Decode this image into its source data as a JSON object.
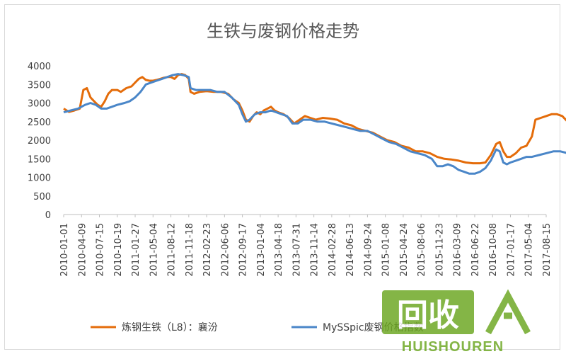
{
  "chart_data": {
    "type": "line",
    "title": "生铁与废钢价格走势",
    "xlabel": "",
    "ylabel": "",
    "ylim": [
      0,
      4000
    ],
    "yticks": [
      0,
      500,
      1000,
      1500,
      2000,
      2500,
      3000,
      3500,
      4000
    ],
    "grid": false,
    "legend_position": "bottom",
    "x_tick_labels": [
      "2010-01-01",
      "2010-04-09",
      "2010-07-15",
      "2010-10-19",
      "2011-01-27",
      "2011-05-04",
      "2011-08-12",
      "2011-11-18",
      "2012-02-23",
      "2012-06-06",
      "2012-09-17",
      "2013-01-04",
      "2013-04-18",
      "2013-07-31",
      "2013-11-14",
      "2014-02-28",
      "2014-06-13",
      "2014-09-24",
      "2015-01-08",
      "2015-04-24",
      "2015-08-06",
      "2015-11-23",
      "2016-03-09",
      "2016-06-22",
      "2016-10-08",
      "2017-01-17",
      "2017-05-04",
      "2017-08-15"
    ],
    "series": [
      {
        "name": "炼钢生铁（L8）：襄汾",
        "color": "#e46c0a",
        "values": [
          [
            0,
            2850
          ],
          [
            0.3,
            2760
          ],
          [
            0.6,
            2800
          ],
          [
            0.9,
            2850
          ],
          [
            1.1,
            3350
          ],
          [
            1.3,
            3400
          ],
          [
            1.5,
            3150
          ],
          [
            1.7,
            3050
          ],
          [
            1.9,
            2950
          ],
          [
            2.1,
            2900
          ],
          [
            2.3,
            3050
          ],
          [
            2.5,
            3250
          ],
          [
            2.7,
            3350
          ],
          [
            3.0,
            3350
          ],
          [
            3.2,
            3300
          ],
          [
            3.5,
            3400
          ],
          [
            3.8,
            3450
          ],
          [
            4.0,
            3550
          ],
          [
            4.2,
            3650
          ],
          [
            4.4,
            3700
          ],
          [
            4.6,
            3620
          ],
          [
            4.8,
            3600
          ],
          [
            5.0,
            3600
          ],
          [
            5.2,
            3620
          ],
          [
            5.4,
            3650
          ],
          [
            5.6,
            3680
          ],
          [
            5.8,
            3700
          ],
          [
            6.0,
            3700
          ],
          [
            6.2,
            3650
          ],
          [
            6.4,
            3750
          ],
          [
            6.6,
            3780
          ],
          [
            6.8,
            3750
          ],
          [
            7.0,
            3650
          ],
          [
            7.1,
            3300
          ],
          [
            7.3,
            3250
          ],
          [
            7.6,
            3300
          ],
          [
            8.0,
            3320
          ],
          [
            8.4,
            3300
          ],
          [
            8.8,
            3300
          ],
          [
            9.2,
            3250
          ],
          [
            9.5,
            3100
          ],
          [
            9.8,
            3000
          ],
          [
            10.0,
            2800
          ],
          [
            10.2,
            2550
          ],
          [
            10.4,
            2500
          ],
          [
            10.6,
            2650
          ],
          [
            10.8,
            2750
          ],
          [
            11.0,
            2700
          ],
          [
            11.2,
            2800
          ],
          [
            11.4,
            2850
          ],
          [
            11.6,
            2900
          ],
          [
            11.8,
            2800
          ],
          [
            12.0,
            2750
          ],
          [
            12.3,
            2700
          ],
          [
            12.6,
            2600
          ],
          [
            12.9,
            2450
          ],
          [
            13.2,
            2550
          ],
          [
            13.5,
            2650
          ],
          [
            13.8,
            2600
          ],
          [
            14.1,
            2550
          ],
          [
            14.5,
            2600
          ],
          [
            14.9,
            2580
          ],
          [
            15.3,
            2550
          ],
          [
            15.7,
            2450
          ],
          [
            16.1,
            2400
          ],
          [
            16.5,
            2300
          ],
          [
            16.9,
            2250
          ],
          [
            17.3,
            2200
          ],
          [
            17.7,
            2100
          ],
          [
            18.1,
            2000
          ],
          [
            18.5,
            1950
          ],
          [
            18.9,
            1850
          ],
          [
            19.3,
            1800
          ],
          [
            19.7,
            1700
          ],
          [
            20.1,
            1700
          ],
          [
            20.5,
            1650
          ],
          [
            20.9,
            1550
          ],
          [
            21.3,
            1500
          ],
          [
            21.7,
            1480
          ],
          [
            22.1,
            1450
          ],
          [
            22.5,
            1400
          ],
          [
            22.9,
            1380
          ],
          [
            23.3,
            1380
          ],
          [
            23.6,
            1400
          ],
          [
            23.9,
            1600
          ],
          [
            24.2,
            1900
          ],
          [
            24.4,
            1950
          ],
          [
            24.6,
            1700
          ],
          [
            24.8,
            1550
          ],
          [
            25.0,
            1550
          ],
          [
            25.3,
            1650
          ],
          [
            25.6,
            1800
          ],
          [
            25.9,
            1850
          ],
          [
            26.2,
            2100
          ],
          [
            26.4,
            2550
          ],
          [
            26.7,
            2600
          ],
          [
            27.0,
            2650
          ],
          [
            27.3,
            2700
          ],
          [
            27.6,
            2700
          ],
          [
            27.9,
            2650
          ],
          [
            28.2,
            2500
          ],
          [
            28.5,
            2400
          ],
          [
            28.8,
            2350
          ],
          [
            29.1,
            2400
          ],
          [
            29.4,
            2450
          ],
          [
            29.7,
            2600
          ],
          [
            30.0,
            2800
          ],
          [
            30.3,
            2800
          ],
          [
            30.6,
            2750
          ],
          [
            30.8,
            2700
          ],
          [
            31.0,
            2850
          ]
        ]
      },
      {
        "name": "MySSpic废钢价格指数",
        "color": "#4a86c8",
        "values": [
          [
            0,
            2750
          ],
          [
            0.4,
            2800
          ],
          [
            0.8,
            2850
          ],
          [
            1.2,
            2950
          ],
          [
            1.5,
            3000
          ],
          [
            1.8,
            2950
          ],
          [
            2.1,
            2850
          ],
          [
            2.4,
            2850
          ],
          [
            2.7,
            2900
          ],
          [
            3.0,
            2950
          ],
          [
            3.4,
            3000
          ],
          [
            3.7,
            3050
          ],
          [
            4.0,
            3150
          ],
          [
            4.3,
            3300
          ],
          [
            4.6,
            3500
          ],
          [
            4.9,
            3550
          ],
          [
            5.2,
            3600
          ],
          [
            5.5,
            3650
          ],
          [
            5.8,
            3700
          ],
          [
            6.1,
            3750
          ],
          [
            6.4,
            3780
          ],
          [
            6.7,
            3750
          ],
          [
            7.0,
            3700
          ],
          [
            7.1,
            3400
          ],
          [
            7.4,
            3350
          ],
          [
            7.8,
            3350
          ],
          [
            8.2,
            3350
          ],
          [
            8.6,
            3300
          ],
          [
            9.0,
            3300
          ],
          [
            9.4,
            3150
          ],
          [
            9.8,
            2950
          ],
          [
            10.0,
            2700
          ],
          [
            10.2,
            2500
          ],
          [
            10.4,
            2550
          ],
          [
            10.7,
            2700
          ],
          [
            11.0,
            2750
          ],
          [
            11.3,
            2750
          ],
          [
            11.6,
            2800
          ],
          [
            11.9,
            2750
          ],
          [
            12.2,
            2700
          ],
          [
            12.5,
            2650
          ],
          [
            12.8,
            2450
          ],
          [
            13.1,
            2450
          ],
          [
            13.4,
            2550
          ],
          [
            13.8,
            2550
          ],
          [
            14.2,
            2500
          ],
          [
            14.6,
            2500
          ],
          [
            15.0,
            2450
          ],
          [
            15.4,
            2400
          ],
          [
            15.8,
            2350
          ],
          [
            16.2,
            2300
          ],
          [
            16.6,
            2250
          ],
          [
            17.0,
            2250
          ],
          [
            17.4,
            2150
          ],
          [
            17.8,
            2050
          ],
          [
            18.2,
            1950
          ],
          [
            18.6,
            1900
          ],
          [
            19.0,
            1800
          ],
          [
            19.4,
            1700
          ],
          [
            19.8,
            1650
          ],
          [
            20.2,
            1600
          ],
          [
            20.6,
            1500
          ],
          [
            20.9,
            1300
          ],
          [
            21.2,
            1300
          ],
          [
            21.5,
            1350
          ],
          [
            21.8,
            1300
          ],
          [
            22.1,
            1200
          ],
          [
            22.4,
            1150
          ],
          [
            22.7,
            1100
          ],
          [
            23.0,
            1100
          ],
          [
            23.3,
            1150
          ],
          [
            23.6,
            1250
          ],
          [
            23.9,
            1450
          ],
          [
            24.2,
            1750
          ],
          [
            24.4,
            1700
          ],
          [
            24.6,
            1400
          ],
          [
            24.8,
            1350
          ],
          [
            25.0,
            1400
          ],
          [
            25.3,
            1450
          ],
          [
            25.6,
            1500
          ],
          [
            25.9,
            1550
          ],
          [
            26.2,
            1550
          ],
          [
            26.6,
            1600
          ],
          [
            27.0,
            1650
          ],
          [
            27.4,
            1700
          ],
          [
            27.8,
            1700
          ],
          [
            28.2,
            1650
          ],
          [
            28.5,
            1550
          ],
          [
            28.8,
            1550
          ],
          [
            29.1,
            1650
          ],
          [
            29.4,
            1750
          ],
          [
            29.7,
            1750
          ],
          [
            30.0,
            1800
          ],
          [
            30.3,
            1750
          ],
          [
            30.6,
            1800
          ],
          [
            30.8,
            1900
          ],
          [
            31.0,
            1950
          ]
        ]
      }
    ]
  },
  "watermark": {
    "main_text": "回收",
    "sub_text": "HUISHOUREN",
    "green": "#6aa51e"
  },
  "colors": {
    "axis": "#bfbfbf",
    "text": "#404040"
  }
}
